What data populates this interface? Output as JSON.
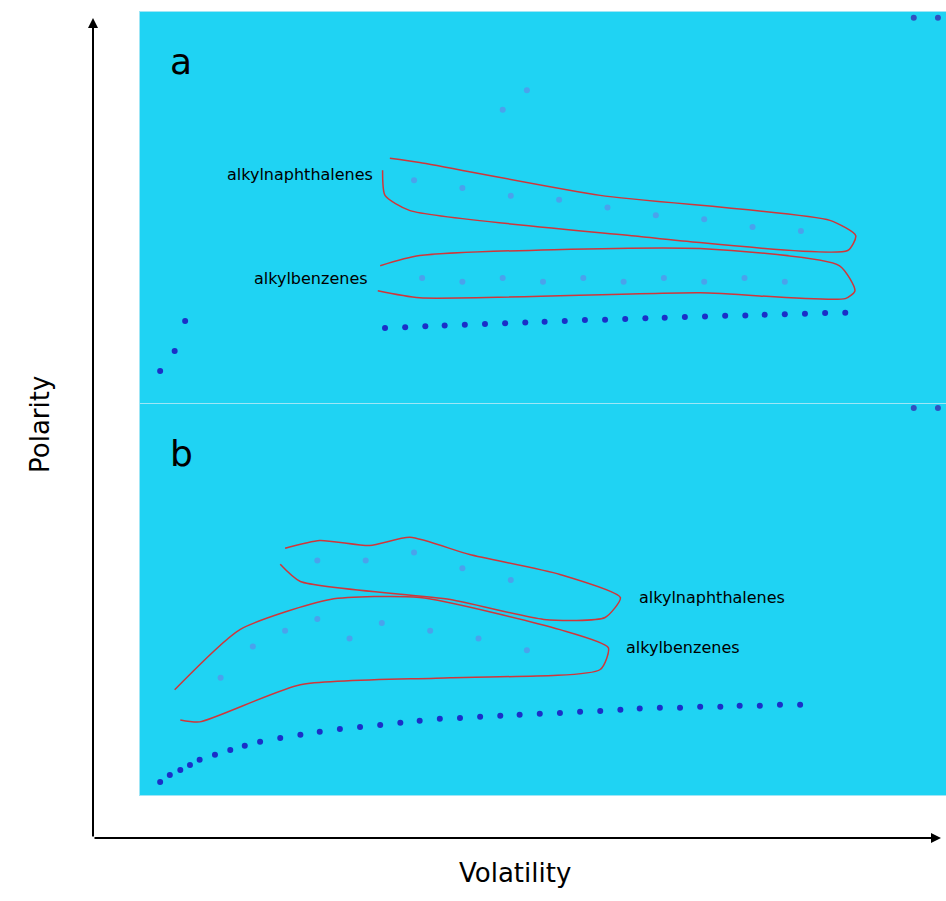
{
  "chart_data": [
    {
      "type": "scatter",
      "title": "a",
      "xlim": [
        0,
        100
      ],
      "ylim": [
        0,
        100
      ],
      "tick_labels": false,
      "grid": false,
      "series": [
        {
          "color": "#4aa2ec",
          "marker": "circle",
          "x": [
            35,
            40,
            45,
            50,
            55,
            60,
            65,
            70,
            75,
            80,
            34,
            40,
            46,
            52,
            58,
            64,
            70,
            76,
            82,
            45,
            48
          ],
          "y": [
            32,
            31,
            32,
            31,
            32,
            31,
            32,
            31,
            32,
            31,
            57,
            55,
            53,
            52,
            50,
            48,
            47,
            45,
            44,
            75,
            80
          ]
        },
        {
          "color": "#1b2fc8",
          "marker": "circle",
          "x": [
            30.4,
            32.9,
            35.4,
            37.8,
            40.3,
            42.8,
            45.3,
            47.8,
            50.2,
            52.7,
            55.2,
            57.7,
            60.2,
            62.7,
            65.1,
            67.6,
            70.1,
            72.6,
            75.1,
            77.5,
            80.0,
            82.5,
            85.0,
            87.5,
            5.6,
            4.3,
            2.5
          ],
          "y": [
            19.2,
            19.4,
            19.6,
            19.8,
            20.0,
            20.2,
            20.4,
            20.6,
            20.8,
            21.0,
            21.2,
            21.3,
            21.5,
            21.7,
            21.8,
            22.0,
            22.1,
            22.3,
            22.4,
            22.6,
            22.7,
            22.8,
            23.0,
            23.1,
            21.0,
            13.3,
            8.2
          ]
        },
        {
          "color": "#3050c0",
          "marker": "circle",
          "x": [
            96,
            99
          ],
          "y": [
            98.5,
            98.5
          ]
        }
      ],
      "regions": [
        {
          "label": "alkylnaphthalenes",
          "color": "#d0363a",
          "x": [
            31.0,
            34.7,
            57.1,
            85.6,
            88.8,
            87.8,
            67.0,
            62.0,
            33.5,
            30.4,
            30.1
          ],
          "y": [
            62.6,
            61.5,
            53.1,
            46.7,
            42.8,
            39.0,
            41.5,
            42.6,
            49.2,
            53.1,
            59.5
          ]
        },
        {
          "label": "alkylbenzenes",
          "color": "#d0363a",
          "x": [
            29.8,
            34.7,
            69.5,
            86.8,
            88.7,
            87.5,
            69.5,
            34.7,
            29.5
          ],
          "y": [
            35.1,
            37.7,
            39.5,
            35.1,
            28.7,
            26.7,
            28.2,
            26.9,
            28.7
          ]
        }
      ]
    },
    {
      "type": "scatter",
      "title": "b",
      "xlim": [
        0,
        100
      ],
      "ylim": [
        0,
        100
      ],
      "tick_labels": false,
      "grid": false,
      "series": [
        {
          "color": "#4aa2ec",
          "marker": "circle",
          "x": [
            10,
            14,
            18,
            22,
            26,
            30,
            36,
            42,
            48,
            22,
            28,
            34,
            40,
            46
          ],
          "y": [
            30,
            38,
            42,
            45,
            40,
            44,
            42,
            40,
            37,
            60,
            60,
            62,
            58,
            55
          ]
        },
        {
          "color": "#1b2fc8",
          "marker": "circle",
          "x": [
            2.5,
            3.7,
            5.0,
            6.2,
            7.4,
            9.3,
            11.2,
            13.0,
            14.9,
            17.4,
            19.9,
            22.3,
            24.8,
            27.3,
            29.8,
            32.3,
            34.7,
            37.2,
            39.7,
            42.2,
            44.7,
            47.1,
            49.6,
            52.1,
            54.6,
            57.1,
            59.6,
            62.0,
            64.5,
            67.0,
            69.5,
            72.0,
            74.4,
            76.9,
            79.4,
            81.9
          ],
          "y": [
            3.3,
            5.1,
            6.4,
            7.7,
            9.0,
            10.3,
            11.5,
            12.6,
            13.6,
            14.6,
            15.4,
            16.2,
            16.9,
            17.4,
            17.9,
            18.5,
            19.0,
            19.5,
            19.7,
            20.0,
            20.3,
            20.5,
            20.8,
            21.0,
            21.3,
            21.5,
            21.8,
            22.1,
            22.3,
            22.3,
            22.6,
            22.6,
            22.8,
            22.8,
            23.1,
            23.1
          ]
        },
        {
          "color": "#3050c0",
          "marker": "circle",
          "x": [
            96,
            99
          ],
          "y": [
            99,
            99
          ]
        }
      ],
      "regions": [
        {
          "label": "alkylnaphthalenes",
          "color": "#d0363a",
          "x": [
            18.0,
            22.3,
            28.5,
            33.5,
            40.9,
            52.1,
            59.6,
            57.7,
            50.1,
            38.5,
            19.9,
            17.4
          ],
          "y": [
            63.1,
            65.1,
            63.8,
            65.9,
            61.5,
            56.4,
            50.5,
            45.4,
            44.9,
            50.0,
            54.6,
            59.0
          ]
        },
        {
          "label": "alkylbenzenes",
          "color": "#d0363a",
          "x": [
            4.3,
            12.4,
            23.6,
            34.7,
            52.1,
            58.1,
            57.1,
            38.5,
            19.9,
            7.4,
            5.0
          ],
          "y": [
            26.9,
            42.3,
            50.0,
            50.5,
            42.3,
            37.7,
            32.1,
            30.0,
            28.2,
            18.7,
            19.2
          ]
        }
      ]
    }
  ],
  "axes": {
    "x_label": "Volatility",
    "y_label": "Polarity"
  }
}
